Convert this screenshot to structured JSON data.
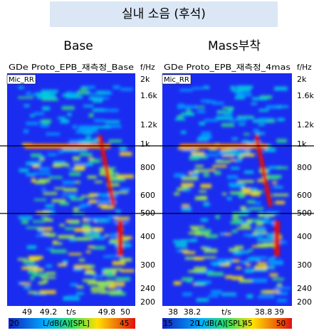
{
  "title": "실내 소음 (후석)",
  "panels": [
    {
      "label": "Base",
      "header": "GDe Proto_EPB_재측정_Base",
      "unit": "f/Hz",
      "channel": "Mic_RR",
      "yticks": [
        "2k",
        "1.6k",
        "1.2k",
        "1k",
        "800",
        "600",
        "500",
        "400",
        "300",
        "240",
        "200"
      ],
      "xticks": [
        "49",
        "49.2",
        "t/s",
        "49.8",
        "50"
      ],
      "colorbar": [
        "20",
        "L/dB(A)[SPL]",
        "45"
      ]
    },
    {
      "label": "Mass부착",
      "header": "GDe Proto_EPB_재측정_4mas",
      "unit": "f/Hz",
      "channel": "Mic_RR",
      "yticks": [
        "2k",
        "1.6k",
        "1.2k",
        "1k",
        "800",
        "600",
        "500",
        "400",
        "300",
        "240",
        "200"
      ],
      "xticks": [
        "38",
        "38.2",
        "t/s",
        "38.8",
        "39"
      ],
      "colorbar": [
        "15",
        "20",
        "L/dB(A)[SPL]",
        "45",
        "50"
      ]
    }
  ]
}
